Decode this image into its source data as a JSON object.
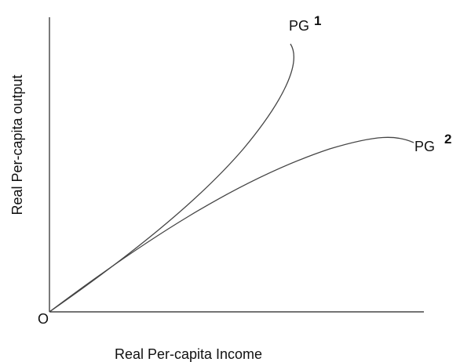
{
  "diagram": {
    "x_axis_label": "Real Per-capita Income",
    "y_axis_label": "Real Per-capita output",
    "origin_label": "O",
    "curves": [
      {
        "label": "PG",
        "number": "1"
      },
      {
        "label": "PG",
        "number": "2"
      }
    ]
  }
}
